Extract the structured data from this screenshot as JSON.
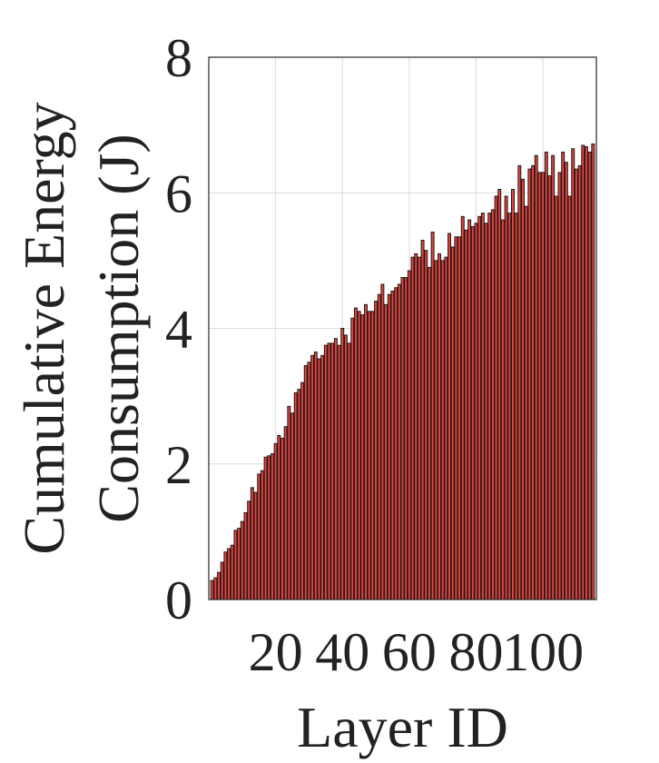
{
  "chart_data": {
    "type": "bar",
    "xlabel": "Layer ID",
    "ylabel_lines": [
      "Cumulative Energy",
      "Consumption (J)"
    ],
    "xlim": [
      0,
      116
    ],
    "ylim": [
      0,
      8
    ],
    "xticks": [
      20,
      40,
      60,
      80,
      100
    ],
    "yticks": [
      0,
      2,
      4,
      6,
      8
    ],
    "grid": true,
    "bar_color": "#e8423c",
    "bar_edge_color": "#1a1a1a",
    "x": [
      1,
      2,
      3,
      4,
      5,
      6,
      7,
      8,
      9,
      10,
      11,
      12,
      13,
      14,
      15,
      16,
      17,
      18,
      19,
      20,
      21,
      22,
      23,
      24,
      25,
      26,
      27,
      28,
      29,
      30,
      31,
      32,
      33,
      34,
      35,
      36,
      37,
      38,
      39,
      40,
      41,
      42,
      43,
      44,
      45,
      46,
      47,
      48,
      49,
      50,
      51,
      52,
      53,
      54,
      55,
      56,
      57,
      58,
      59,
      60,
      61,
      62,
      63,
      64,
      65,
      66,
      67,
      68,
      69,
      70,
      71,
      72,
      73,
      74,
      75,
      76,
      77,
      78,
      79,
      80,
      81,
      82,
      83,
      84,
      85,
      86,
      87,
      88,
      89,
      90,
      91,
      92,
      93,
      94,
      95,
      96,
      97,
      98,
      99,
      100,
      101,
      102,
      103,
      104,
      105,
      106,
      107,
      108,
      109,
      110,
      111,
      112,
      113,
      114,
      115
    ],
    "values": [
      0.28,
      0.32,
      0.4,
      0.55,
      0.7,
      0.75,
      0.8,
      1.02,
      1.05,
      1.15,
      1.28,
      1.45,
      1.65,
      1.58,
      1.85,
      1.9,
      2.1,
      2.12,
      2.15,
      2.3,
      2.42,
      2.38,
      2.55,
      2.85,
      2.75,
      3.05,
      3.1,
      3.2,
      3.45,
      3.5,
      3.6,
      3.65,
      3.55,
      3.6,
      3.75,
      3.78,
      3.78,
      3.85,
      3.75,
      4.0,
      3.9,
      3.78,
      4.15,
      4.3,
      4.25,
      4.2,
      4.35,
      4.25,
      4.25,
      4.4,
      4.5,
      4.65,
      4.35,
      4.5,
      4.55,
      4.6,
      4.65,
      4.75,
      4.75,
      4.85,
      5.05,
      5.1,
      5.05,
      5.3,
      5.15,
      4.9,
      5.42,
      5.0,
      5.1,
      5.0,
      5.05,
      5.4,
      5.2,
      5.35,
      5.35,
      5.65,
      5.45,
      5.6,
      5.5,
      5.55,
      5.65,
      5.7,
      5.55,
      5.7,
      5.75,
      5.95,
      6.05,
      5.6,
      5.95,
      5.7,
      6.05,
      5.7,
      6.4,
      6.2,
      5.8,
      6.35,
      6.4,
      6.55,
      6.3,
      6.3,
      6.6,
      6.25,
      6.55,
      5.95,
      6.3,
      6.6,
      6.45,
      5.95,
      6.65,
      6.35,
      6.4,
      6.7,
      6.68,
      6.6,
      6.72
    ]
  }
}
